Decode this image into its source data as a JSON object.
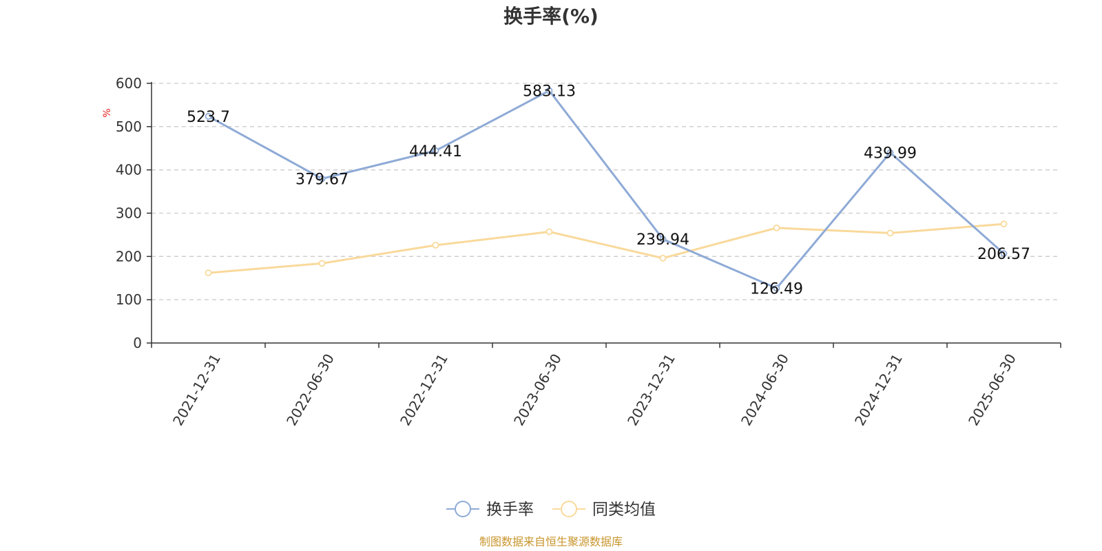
{
  "chart_data": {
    "type": "line",
    "title": "换手率(%)",
    "ylabel": "%",
    "ylim": [
      0,
      600
    ],
    "yticks": [
      0,
      100,
      200,
      300,
      400,
      500,
      600
    ],
    "grid": true,
    "legend_position": "bottom",
    "categories": [
      "2021-12-31",
      "2022-06-30",
      "2022-12-31",
      "2023-06-30",
      "2023-12-31",
      "2024-06-30",
      "2024-12-31",
      "2025-06-30"
    ],
    "series": [
      {
        "name": "换手率",
        "color": "#8eaad6",
        "values": [
          523.7,
          379.67,
          444.41,
          583.13,
          239.94,
          126.49,
          439.99,
          206.57
        ],
        "labels": [
          "523.7",
          "379.67",
          "444.41",
          "583.13",
          "239.94",
          "126.49",
          "439.99",
          "206.57"
        ]
      },
      {
        "name": "同类均值",
        "color": "#f9d99b",
        "values": [
          162,
          184,
          226,
          257,
          196,
          266,
          254,
          275
        ]
      }
    ],
    "unit_color": "#e02020",
    "source": "制图数据来自恒生聚源数据库",
    "source_color": "#c8962e"
  }
}
